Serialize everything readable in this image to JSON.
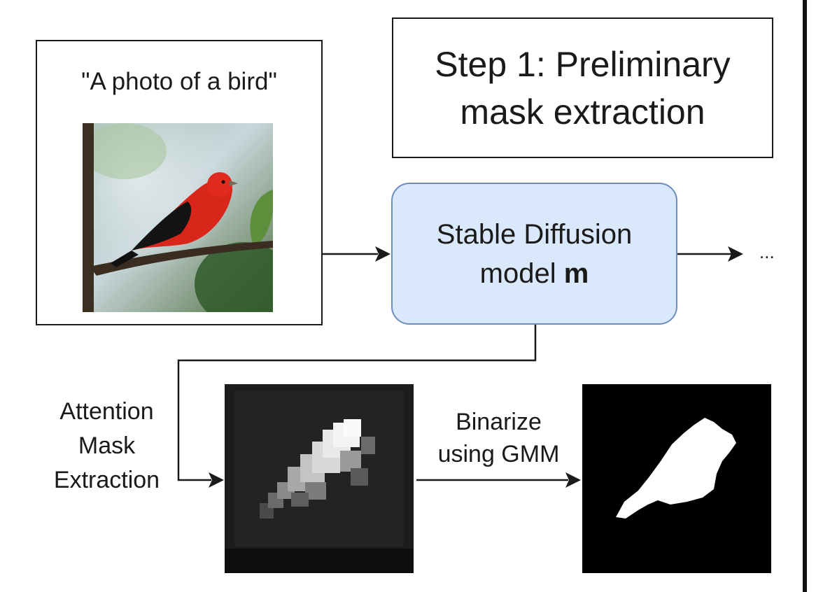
{
  "input": {
    "prompt": "\"A photo of a bird\""
  },
  "step_title": {
    "line1": "Step 1: Preliminary",
    "line2": "mask extraction"
  },
  "model_box": {
    "line1": "Stable Diffusion",
    "line2_prefix": "model ",
    "line2_bold": "m",
    "fill_color": "#dae8fc",
    "stroke_color": "#6c8ebf"
  },
  "continuation": "...",
  "attention": {
    "line1": "Attention",
    "line2": "Mask",
    "line3": "Extraction"
  },
  "binarize": {
    "line1": "Binarize",
    "line2": "using GMM"
  },
  "icons": {
    "bird_photo": "bird-photo-icon",
    "attention_map": "attention-heatmap",
    "binary_mask": "binary-mask"
  }
}
